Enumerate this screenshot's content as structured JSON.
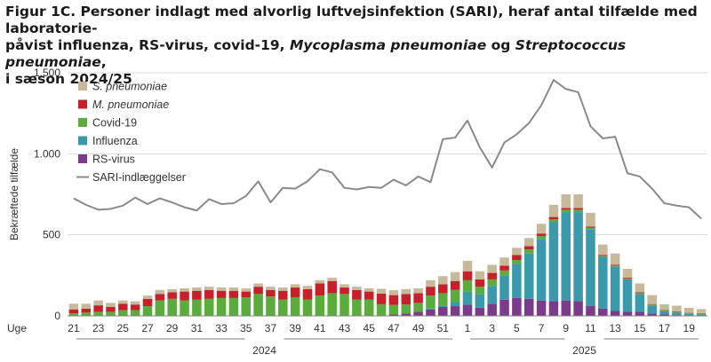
{
  "title": {
    "line1": "Figur 1C. Personer indlagt med alvorlig luftvejsinfektion (SARI), heraf antal tilfælde med laboratorie-",
    "line2_a": "påvist influenza, RS-virus, covid-19, ",
    "line2_b": "Mycoplasma pneumoniae",
    "line2_c": " og ",
    "line2_d": "Streptococcus pneumoniae",
    "line2_e": ",",
    "line3": "i sæson 2024/25"
  },
  "chart_data": {
    "type": "bar",
    "stacked": true,
    "ylabel": "Bekræftede tilfælde",
    "xlabel": "Uge",
    "ylim": [
      0,
      1500
    ],
    "yticks": [
      0,
      500,
      1000,
      1500
    ],
    "ytick_labels": [
      "0",
      "500",
      "1.000",
      "1.500"
    ],
    "grid": "horizontal",
    "legend": "top-left",
    "weeks": [
      21,
      22,
      23,
      24,
      25,
      26,
      27,
      28,
      29,
      30,
      31,
      32,
      33,
      34,
      35,
      36,
      37,
      38,
      39,
      40,
      41,
      42,
      43,
      44,
      45,
      46,
      47,
      48,
      49,
      50,
      51,
      52,
      1,
      2,
      3,
      4,
      5,
      6,
      7,
      8,
      9,
      10,
      11,
      12,
      13,
      14,
      15,
      16,
      17,
      18,
      19,
      20
    ],
    "xtick_labels": [
      "21",
      "23",
      "25",
      "27",
      "29",
      "31",
      "33",
      "35",
      "37",
      "39",
      "41",
      "43",
      "45",
      "47",
      "49",
      "51",
      "1",
      "3",
      "5",
      "7",
      "9",
      "11",
      "13",
      "15",
      "17",
      "19"
    ],
    "year_groups": [
      {
        "label": "2024",
        "start_week": 21,
        "end_week": 52
      },
      {
        "label": "2025",
        "start_week": 1,
        "end_week": 20
      }
    ],
    "series": [
      {
        "name": "RS-virus",
        "color": "#7b3a8a",
        "values": [
          0,
          0,
          0,
          0,
          0,
          0,
          0,
          0,
          0,
          0,
          0,
          0,
          0,
          0,
          0,
          0,
          0,
          0,
          0,
          0,
          0,
          0,
          0,
          0,
          0,
          2,
          8,
          15,
          25,
          40,
          55,
          60,
          70,
          50,
          75,
          100,
          110,
          105,
          95,
          90,
          95,
          90,
          60,
          45,
          30,
          25,
          25,
          15,
          8,
          5,
          3,
          2
        ]
      },
      {
        "name": "Influenza",
        "color": "#3a9aab",
        "values": [
          0,
          0,
          0,
          0,
          0,
          0,
          0,
          0,
          0,
          0,
          0,
          0,
          0,
          0,
          0,
          0,
          0,
          0,
          0,
          0,
          0,
          0,
          0,
          0,
          0,
          0,
          0,
          0,
          0,
          5,
          10,
          25,
          80,
          85,
          110,
          150,
          210,
          280,
          380,
          490,
          545,
          550,
          475,
          320,
          275,
          200,
          110,
          50,
          20,
          15,
          10,
          8
        ]
      },
      {
        "name": "Covid-19",
        "color": "#5aad3c",
        "values": [
          15,
          20,
          25,
          25,
          35,
          35,
          60,
          95,
          105,
          95,
          100,
          105,
          110,
          110,
          115,
          135,
          120,
          100,
          115,
          100,
          125,
          140,
          135,
          100,
          100,
          70,
          60,
          55,
          55,
          80,
          75,
          75,
          70,
          45,
          40,
          30,
          25,
          25,
          18,
          15,
          15,
          15,
          8,
          5,
          5,
          5,
          5,
          5,
          5,
          5,
          5,
          5
        ]
      },
      {
        "name": "M. pneumoniae",
        "color": "#c8202a",
        "values": [
          25,
          25,
          40,
          30,
          40,
          35,
          45,
          40,
          40,
          55,
          55,
          55,
          45,
          45,
          35,
          45,
          40,
          55,
          60,
          65,
          75,
          75,
          40,
          60,
          50,
          65,
          60,
          65,
          60,
          55,
          55,
          55,
          55,
          45,
          40,
          30,
          30,
          20,
          15,
          15,
          10,
          10,
          8,
          5,
          5,
          5,
          5,
          3,
          3,
          3,
          2,
          2
        ]
      },
      {
        "name": "S. pneumoniae",
        "color": "#c7b99a",
        "values": [
          35,
          30,
          30,
          25,
          20,
          20,
          20,
          25,
          20,
          20,
          20,
          20,
          20,
          20,
          20,
          20,
          20,
          20,
          20,
          20,
          20,
          20,
          20,
          20,
          20,
          30,
          30,
          30,
          30,
          40,
          50,
          55,
          65,
          50,
          50,
          50,
          45,
          50,
          60,
          75,
          85,
          85,
          85,
          65,
          70,
          55,
          55,
          55,
          35,
          35,
          30,
          25
        ]
      },
      {
        "name": "SARI-indlæggelser",
        "color": "#8a8a8a",
        "type": "line",
        "values": [
          725,
          685,
          655,
          660,
          680,
          730,
          690,
          725,
          700,
          670,
          650,
          720,
          690,
          695,
          740,
          830,
          700,
          790,
          785,
          830,
          905,
          885,
          790,
          780,
          795,
          790,
          840,
          805,
          860,
          825,
          1090,
          1100,
          1205,
          1040,
          915,
          1070,
          1120,
          1190,
          1300,
          1455,
          1400,
          1380,
          1170,
          1095,
          1105,
          880,
          860,
          785,
          695,
          680,
          670,
          600
        ]
      }
    ]
  }
}
